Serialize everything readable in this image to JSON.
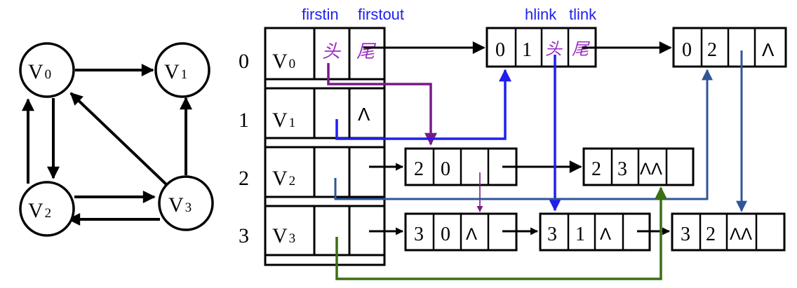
{
  "graph": {
    "vertices": [
      {
        "letter": "V",
        "sub": "0"
      },
      {
        "letter": "V",
        "sub": "1"
      },
      {
        "letter": "V",
        "sub": "2"
      },
      {
        "letter": "V",
        "sub": "3"
      }
    ]
  },
  "headers": {
    "firstin": "firstin",
    "firstout": "firstout",
    "hlink": "hlink",
    "tlink": "tlink"
  },
  "rows": [
    {
      "index": "0",
      "letter": "V",
      "sub": "0",
      "in": "头",
      "out": "尾"
    },
    {
      "index": "1",
      "letter": "V",
      "sub": "1",
      "in": "",
      "out": "Λ"
    },
    {
      "index": "2",
      "letter": "V",
      "sub": "2",
      "in": "",
      "out": ""
    },
    {
      "index": "3",
      "letter": "V",
      "sub": "3",
      "in": "",
      "out": ""
    }
  ],
  "arcs": {
    "a01": {
      "tail": "0",
      "head": "1",
      "hlink": "头",
      "tlink": "尾"
    },
    "a02": {
      "tail": "0",
      "head": "2",
      "hlink": "",
      "tlink": "Λ"
    },
    "a20": {
      "tail": "2",
      "head": "0",
      "hlink": "",
      "tlink": ""
    },
    "a23": {
      "tail": "2",
      "head": "3",
      "hlink": "ΛΛ",
      "tlink": ""
    },
    "a30": {
      "tail": "3",
      "head": "0",
      "hlink": "Λ",
      "tlink": ""
    },
    "a31": {
      "tail": "3",
      "head": "1",
      "hlink": "Λ",
      "tlink": ""
    },
    "a32": {
      "tail": "3",
      "head": "2",
      "hlink": "ΛΛ",
      "tlink": ""
    }
  },
  "colors": {
    "black": "#000000",
    "purple": "#7a1a8a",
    "handwriting": "#9b2fc0",
    "blue": "#1f1ff0",
    "steel": "#2f5597",
    "green": "#3a6f14"
  }
}
